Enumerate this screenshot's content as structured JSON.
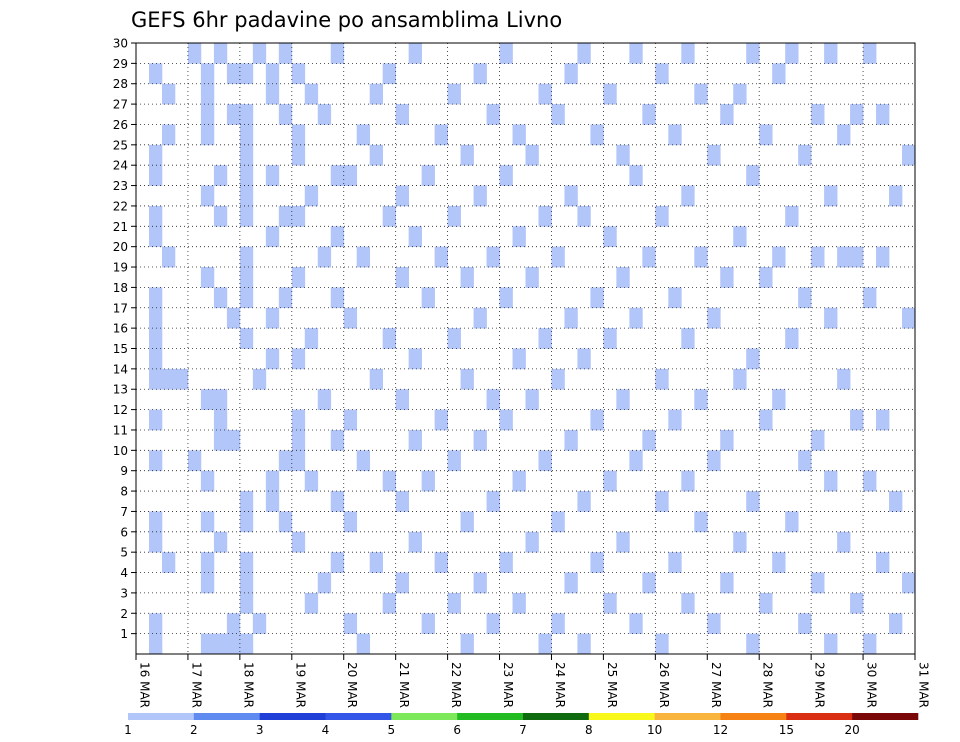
{
  "chart_data": {
    "type": "heatmap",
    "title": "GEFS 6hr padavine po ansamblima Livno",
    "xlabel": "",
    "ylabel": "",
    "x_ticks": [
      "16 MAR",
      "17 MAR",
      "18 MAR",
      "19 MAR",
      "20 MAR",
      "21 MAR",
      "22 MAR",
      "23 MAR",
      "24 MAR",
      "25 MAR",
      "26 MAR",
      "27 MAR",
      "28 MAR",
      "29 MAR",
      "30 MAR",
      "31 MAR"
    ],
    "y_ticks": [
      1,
      2,
      3,
      4,
      5,
      6,
      7,
      8,
      9,
      10,
      11,
      12,
      13,
      14,
      15,
      16,
      17,
      18,
      19,
      20,
      21,
      22,
      23,
      24,
      25,
      26,
      27,
      28,
      29,
      30
    ],
    "steps_per_day": 4,
    "grid": "dotted",
    "colorbar": {
      "levels": [
        "1",
        "2",
        "3",
        "4",
        "5",
        "6",
        "7",
        "8",
        "10",
        "12",
        "15",
        "20"
      ],
      "colors": [
        "#b3c6fa",
        "#5f8bf0",
        "#1f3fd6",
        "#3355e8",
        "#7ce85a",
        "#22bb22",
        "#106b10",
        "#f8f81a",
        "#f8b43c",
        "#f58212",
        "#d92e12",
        "#7a0808"
      ]
    },
    "data": [
      [
        1,
        2,
        1
      ],
      [
        1,
        2,
        2
      ],
      [
        1,
        2,
        6
      ],
      [
        1,
        2,
        7
      ],
      [
        1,
        2,
        10
      ],
      [
        1,
        2,
        12
      ],
      [
        1,
        2,
        14
      ],
      [
        1,
        2,
        15
      ],
      [
        1,
        2,
        16
      ],
      [
        1,
        2,
        17
      ],
      [
        1,
        2,
        18
      ],
      [
        1,
        2,
        21
      ],
      [
        1,
        2,
        22
      ],
      [
        1,
        2,
        24
      ],
      [
        1,
        2,
        25
      ],
      [
        1,
        2,
        29
      ],
      [
        1,
        3,
        5
      ],
      [
        1,
        3,
        14
      ],
      [
        1,
        3,
        20
      ],
      [
        1,
        3,
        26
      ],
      [
        1,
        3,
        28
      ],
      [
        1,
        4,
        14
      ],
      [
        2,
        1,
        10
      ],
      [
        2,
        1,
        30
      ],
      [
        2,
        2,
        1
      ],
      [
        2,
        2,
        4
      ],
      [
        2,
        2,
        5
      ],
      [
        2,
        2,
        7
      ],
      [
        2,
        2,
        9
      ],
      [
        2,
        2,
        13
      ],
      [
        2,
        2,
        19
      ],
      [
        2,
        2,
        23
      ],
      [
        2,
        2,
        26
      ],
      [
        2,
        2,
        27
      ],
      [
        2,
        2,
        28
      ],
      [
        2,
        2,
        29
      ],
      [
        2,
        3,
        1
      ],
      [
        2,
        3,
        6
      ],
      [
        2,
        3,
        11
      ],
      [
        2,
        3,
        12
      ],
      [
        2,
        3,
        13
      ],
      [
        2,
        3,
        18
      ],
      [
        2,
        3,
        22
      ],
      [
        2,
        3,
        24
      ],
      [
        2,
        3,
        30
      ],
      [
        2,
        4,
        1
      ],
      [
        2,
        4,
        2
      ],
      [
        2,
        4,
        11
      ],
      [
        2,
        4,
        17
      ],
      [
        2,
        4,
        27
      ],
      [
        2,
        4,
        29
      ],
      [
        3,
        1,
        1
      ],
      [
        3,
        1,
        3
      ],
      [
        3,
        1,
        4
      ],
      [
        3,
        1,
        5
      ],
      [
        3,
        1,
        7
      ],
      [
        3,
        1,
        8
      ],
      [
        3,
        1,
        16
      ],
      [
        3,
        1,
        18
      ],
      [
        3,
        1,
        19
      ],
      [
        3,
        1,
        20
      ],
      [
        3,
        1,
        22
      ],
      [
        3,
        1,
        23
      ],
      [
        3,
        1,
        24
      ],
      [
        3,
        1,
        25
      ],
      [
        3,
        1,
        26
      ],
      [
        3,
        1,
        27
      ],
      [
        3,
        1,
        29
      ],
      [
        3,
        2,
        2
      ],
      [
        3,
        2,
        14
      ],
      [
        3,
        2,
        30
      ],
      [
        3,
        3,
        8
      ],
      [
        3,
        3,
        9
      ],
      [
        3,
        3,
        15
      ],
      [
        3,
        3,
        17
      ],
      [
        3,
        3,
        21
      ],
      [
        3,
        3,
        24
      ],
      [
        3,
        3,
        28
      ],
      [
        3,
        3,
        29
      ],
      [
        3,
        4,
        7
      ],
      [
        3,
        4,
        10
      ],
      [
        3,
        4,
        18
      ],
      [
        3,
        4,
        22
      ],
      [
        3,
        4,
        27
      ],
      [
        3,
        4,
        30
      ],
      [
        4,
        1,
        6
      ],
      [
        4,
        1,
        10
      ],
      [
        4,
        1,
        11
      ],
      [
        4,
        1,
        12
      ],
      [
        4,
        1,
        15
      ],
      [
        4,
        1,
        19
      ],
      [
        4,
        1,
        22
      ],
      [
        4,
        1,
        25
      ],
      [
        4,
        1,
        26
      ],
      [
        4,
        1,
        29
      ],
      [
        4,
        2,
        3
      ],
      [
        4,
        2,
        9
      ],
      [
        4,
        2,
        16
      ],
      [
        4,
        2,
        23
      ],
      [
        4,
        2,
        28
      ],
      [
        4,
        3,
        4
      ],
      [
        4,
        3,
        13
      ],
      [
        4,
        3,
        20
      ],
      [
        4,
        3,
        27
      ],
      [
        4,
        4,
        5
      ],
      [
        4,
        4,
        8
      ],
      [
        4,
        4,
        11
      ],
      [
        4,
        4,
        18
      ],
      [
        4,
        4,
        21
      ],
      [
        4,
        4,
        24
      ],
      [
        4,
        4,
        30
      ],
      [
        5,
        1,
        2
      ],
      [
        5,
        1,
        7
      ],
      [
        5,
        1,
        12
      ],
      [
        5,
        1,
        17
      ],
      [
        5,
        1,
        24
      ],
      [
        5,
        2,
        1
      ],
      [
        5,
        2,
        10
      ],
      [
        5,
        2,
        20
      ],
      [
        5,
        2,
        26
      ],
      [
        5,
        3,
        5
      ],
      [
        5,
        3,
        14
      ],
      [
        5,
        3,
        25
      ],
      [
        5,
        3,
        28
      ],
      [
        5,
        4,
        3
      ],
      [
        5,
        4,
        9
      ],
      [
        5,
        4,
        16
      ],
      [
        5,
        4,
        22
      ],
      [
        5,
        4,
        29
      ],
      [
        6,
        1,
        4
      ],
      [
        6,
        1,
        8
      ],
      [
        6,
        1,
        13
      ],
      [
        6,
        1,
        19
      ],
      [
        6,
        1,
        23
      ],
      [
        6,
        1,
        27
      ],
      [
        6,
        2,
        6
      ],
      [
        6,
        2,
        11
      ],
      [
        6,
        2,
        15
      ],
      [
        6,
        2,
        21
      ],
      [
        6,
        2,
        30
      ],
      [
        6,
        3,
        2
      ],
      [
        6,
        3,
        9
      ],
      [
        6,
        3,
        18
      ],
      [
        6,
        3,
        24
      ],
      [
        6,
        4,
        5
      ],
      [
        6,
        4,
        12
      ],
      [
        6,
        4,
        20
      ],
      [
        6,
        4,
        26
      ],
      [
        7,
        1,
        3
      ],
      [
        7,
        1,
        10
      ],
      [
        7,
        1,
        16
      ],
      [
        7,
        1,
        22
      ],
      [
        7,
        1,
        28
      ],
      [
        7,
        2,
        1
      ],
      [
        7,
        2,
        7
      ],
      [
        7,
        2,
        14
      ],
      [
        7,
        2,
        19
      ],
      [
        7,
        2,
        25
      ],
      [
        7,
        3,
        4
      ],
      [
        7,
        3,
        11
      ],
      [
        7,
        3,
        17
      ],
      [
        7,
        3,
        23
      ],
      [
        7,
        3,
        29
      ],
      [
        7,
        4,
        2
      ],
      [
        7,
        4,
        8
      ],
      [
        7,
        4,
        13
      ],
      [
        7,
        4,
        20
      ],
      [
        7,
        4,
        27
      ],
      [
        8,
        1,
        5
      ],
      [
        8,
        1,
        12
      ],
      [
        8,
        1,
        18
      ],
      [
        8,
        1,
        24
      ],
      [
        8,
        1,
        30
      ],
      [
        8,
        2,
        3
      ],
      [
        8,
        2,
        9
      ],
      [
        8,
        2,
        15
      ],
      [
        8,
        2,
        21
      ],
      [
        8,
        2,
        26
      ],
      [
        8,
        3,
        6
      ],
      [
        8,
        3,
        13
      ],
      [
        8,
        3,
        19
      ],
      [
        8,
        3,
        25
      ],
      [
        8,
        4,
        1
      ],
      [
        8,
        4,
        10
      ],
      [
        8,
        4,
        16
      ],
      [
        8,
        4,
        22
      ],
      [
        8,
        4,
        28
      ],
      [
        9,
        1,
        2
      ],
      [
        9,
        1,
        7
      ],
      [
        9,
        1,
        14
      ],
      [
        9,
        1,
        20
      ],
      [
        9,
        1,
        27
      ],
      [
        9,
        2,
        4
      ],
      [
        9,
        2,
        11
      ],
      [
        9,
        2,
        17
      ],
      [
        9,
        2,
        23
      ],
      [
        9,
        2,
        29
      ],
      [
        9,
        3,
        1
      ],
      [
        9,
        3,
        8
      ],
      [
        9,
        3,
        15
      ],
      [
        9,
        3,
        22
      ],
      [
        9,
        3,
        30
      ],
      [
        9,
        4,
        5
      ],
      [
        9,
        4,
        12
      ],
      [
        9,
        4,
        18
      ],
      [
        9,
        4,
        26
      ],
      [
        10,
        1,
        3
      ],
      [
        10,
        1,
        9
      ],
      [
        10,
        1,
        16
      ],
      [
        10,
        1,
        21
      ],
      [
        10,
        1,
        28
      ],
      [
        10,
        2,
        6
      ],
      [
        10,
        2,
        13
      ],
      [
        10,
        2,
        19
      ],
      [
        10,
        2,
        25
      ],
      [
        10,
        3,
        2
      ],
      [
        10,
        3,
        10
      ],
      [
        10,
        3,
        17
      ],
      [
        10,
        3,
        24
      ],
      [
        10,
        3,
        30
      ],
      [
        10,
        4,
        4
      ],
      [
        10,
        4,
        11
      ],
      [
        10,
        4,
        20
      ],
      [
        10,
        4,
        27
      ],
      [
        11,
        1,
        1
      ],
      [
        11,
        1,
        8
      ],
      [
        11,
        1,
        14
      ],
      [
        11,
        1,
        22
      ],
      [
        11,
        1,
        29
      ],
      [
        11,
        2,
        5
      ],
      [
        11,
        2,
        12
      ],
      [
        11,
        2,
        18
      ],
      [
        11,
        2,
        26
      ],
      [
        11,
        3,
        3
      ],
      [
        11,
        3,
        9
      ],
      [
        11,
        3,
        16
      ],
      [
        11,
        3,
        23
      ],
      [
        11,
        3,
        30
      ],
      [
        11,
        4,
        7
      ],
      [
        11,
        4,
        13
      ],
      [
        11,
        4,
        20
      ],
      [
        11,
        4,
        28
      ],
      [
        12,
        1,
        2
      ],
      [
        12,
        1,
        10
      ],
      [
        12,
        1,
        17
      ],
      [
        12,
        1,
        25
      ],
      [
        12,
        2,
        4
      ],
      [
        12,
        2,
        11
      ],
      [
        12,
        2,
        19
      ],
      [
        12,
        2,
        27
      ],
      [
        12,
        3,
        6
      ],
      [
        12,
        3,
        14
      ],
      [
        12,
        3,
        21
      ],
      [
        12,
        3,
        28
      ],
      [
        12,
        4,
        1
      ],
      [
        12,
        4,
        8
      ],
      [
        12,
        4,
        15
      ],
      [
        12,
        4,
        24
      ],
      [
        12,
        4,
        30
      ],
      [
        13,
        1,
        3
      ],
      [
        13,
        1,
        12
      ],
      [
        13,
        1,
        19
      ],
      [
        13,
        1,
        26
      ],
      [
        13,
        2,
        5
      ],
      [
        13,
        2,
        13
      ],
      [
        13,
        2,
        20
      ],
      [
        13,
        2,
        29
      ],
      [
        13,
        3,
        7
      ],
      [
        13,
        3,
        16
      ],
      [
        13,
        3,
        22
      ],
      [
        13,
        3,
        30
      ],
      [
        13,
        4,
        2
      ],
      [
        13,
        4,
        10
      ],
      [
        13,
        4,
        18
      ],
      [
        13,
        4,
        25
      ],
      [
        14,
        1,
        4
      ],
      [
        14,
        1,
        11
      ],
      [
        14,
        1,
        20
      ],
      [
        14,
        1,
        27
      ],
      [
        14,
        2,
        1
      ],
      [
        14,
        2,
        9
      ],
      [
        14,
        2,
        17
      ],
      [
        14,
        2,
        23
      ],
      [
        14,
        2,
        30
      ],
      [
        14,
        3,
        6
      ],
      [
        14,
        3,
        14
      ],
      [
        14,
        3,
        20
      ],
      [
        14,
        3,
        26
      ],
      [
        14,
        4,
        3
      ],
      [
        14,
        4,
        12
      ],
      [
        14,
        4,
        20
      ],
      [
        14,
        4,
        27
      ],
      [
        15,
        1,
        1
      ],
      [
        15,
        1,
        9
      ],
      [
        15,
        1,
        18
      ],
      [
        15,
        1,
        30
      ],
      [
        15,
        2,
        5
      ],
      [
        15,
        2,
        12
      ],
      [
        15,
        2,
        20
      ],
      [
        15,
        2,
        27
      ],
      [
        15,
        3,
        2
      ],
      [
        15,
        3,
        8
      ],
      [
        15,
        3,
        23
      ],
      [
        15,
        4,
        4
      ],
      [
        15,
        4,
        17
      ],
      [
        15,
        4,
        25
      ]
    ]
  }
}
